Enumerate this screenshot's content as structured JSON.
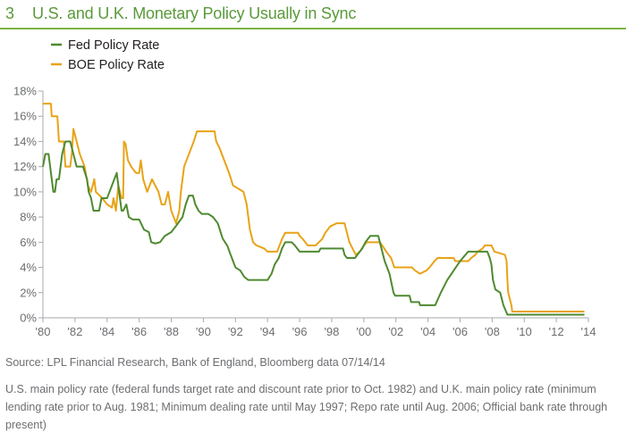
{
  "header": {
    "figure_number": "3",
    "title": "U.S. and U.K. Monetary Policy Usually in Sync"
  },
  "footer": {
    "source": "Source: LPL Financial Research, Bank of England, Bloomberg data   07/14/14",
    "note": "U.S. main policy rate (federal funds target rate and discount rate prior to Oct. 1982) and U.K. main policy rate (minimum lending rate prior to Aug. 1981; Minimum dealing rate until May 1997; Repo rate until Aug. 2006; Official bank rate through present)"
  },
  "colors": {
    "accent": "#7cb342",
    "fed": "#4e8a30",
    "boe": "#e8a317",
    "text": "#6d6e71"
  },
  "chart_data": {
    "type": "line",
    "title": "U.S. and U.K. Monetary Policy Usually in Sync",
    "xlabel": "",
    "ylabel": "",
    "xlim": [
      1980,
      2014
    ],
    "ylim": [
      0,
      18
    ],
    "grid": false,
    "legend_position": "top-left",
    "x_ticks": [
      1980,
      1982,
      1984,
      1986,
      1988,
      1990,
      1992,
      1994,
      1996,
      1998,
      2000,
      2002,
      2004,
      2006,
      2008,
      2010,
      2012,
      2014
    ],
    "x_tick_labels": [
      "'80",
      "'82",
      "'84",
      "'86",
      "'88",
      "'90",
      "'92",
      "'94",
      "'96",
      "'98",
      "'00",
      "'02",
      "'04",
      "'06",
      "'08",
      "'10",
      "'12",
      "'14"
    ],
    "y_ticks": [
      0,
      2,
      4,
      6,
      8,
      10,
      12,
      14,
      16,
      18
    ],
    "y_tick_labels": [
      "0%",
      "2%",
      "4%",
      "6%",
      "8%",
      "10%",
      "12%",
      "14%",
      "16%",
      "18%"
    ],
    "series": [
      {
        "name": "Fed Policy Rate",
        "color": "#4e8a30",
        "points": [
          [
            1980.0,
            12.0
          ],
          [
            1980.15,
            13.0
          ],
          [
            1980.35,
            13.0
          ],
          [
            1980.55,
            11.0
          ],
          [
            1980.65,
            10.0
          ],
          [
            1980.75,
            10.0
          ],
          [
            1980.85,
            11.0
          ],
          [
            1981.0,
            11.0
          ],
          [
            1981.2,
            13.0
          ],
          [
            1981.4,
            14.0
          ],
          [
            1981.7,
            14.0
          ],
          [
            1981.9,
            13.0
          ],
          [
            1982.1,
            12.0
          ],
          [
            1982.5,
            12.0
          ],
          [
            1982.75,
            11.0
          ],
          [
            1982.85,
            10.0
          ],
          [
            1983.0,
            9.5
          ],
          [
            1983.15,
            8.5
          ],
          [
            1983.5,
            8.5
          ],
          [
            1983.65,
            9.5
          ],
          [
            1984.0,
            9.5
          ],
          [
            1984.3,
            10.5
          ],
          [
            1984.6,
            11.5
          ],
          [
            1984.8,
            9.5
          ],
          [
            1984.9,
            8.5
          ],
          [
            1985.0,
            8.5
          ],
          [
            1985.2,
            9.0
          ],
          [
            1985.35,
            8.0
          ],
          [
            1985.6,
            7.8
          ],
          [
            1986.0,
            7.8
          ],
          [
            1986.3,
            7.0
          ],
          [
            1986.6,
            6.8
          ],
          [
            1986.75,
            6.0
          ],
          [
            1987.0,
            5.9
          ],
          [
            1987.3,
            6.0
          ],
          [
            1987.6,
            6.5
          ],
          [
            1988.0,
            6.8
          ],
          [
            1988.3,
            7.3
          ],
          [
            1988.7,
            8.0
          ],
          [
            1988.9,
            9.0
          ],
          [
            1989.1,
            9.7
          ],
          [
            1989.35,
            9.7
          ],
          [
            1989.5,
            9.0
          ],
          [
            1989.7,
            8.5
          ],
          [
            1989.9,
            8.25
          ],
          [
            1990.3,
            8.25
          ],
          [
            1990.6,
            8.0
          ],
          [
            1990.9,
            7.5
          ],
          [
            1991.2,
            6.3
          ],
          [
            1991.5,
            5.7
          ],
          [
            1991.7,
            5.0
          ],
          [
            1991.85,
            4.5
          ],
          [
            1992.0,
            4.0
          ],
          [
            1992.3,
            3.75
          ],
          [
            1992.55,
            3.25
          ],
          [
            1992.8,
            3.0
          ],
          [
            1994.0,
            3.0
          ],
          [
            1994.25,
            3.5
          ],
          [
            1994.45,
            4.25
          ],
          [
            1994.7,
            4.75
          ],
          [
            1994.9,
            5.5
          ],
          [
            1995.1,
            6.0
          ],
          [
            1995.5,
            6.0
          ],
          [
            1995.7,
            5.75
          ],
          [
            1996.0,
            5.25
          ],
          [
            1997.2,
            5.25
          ],
          [
            1997.3,
            5.5
          ],
          [
            1998.7,
            5.5
          ],
          [
            1998.8,
            5.0
          ],
          [
            1998.95,
            4.75
          ],
          [
            1999.45,
            4.75
          ],
          [
            1999.6,
            5.0
          ],
          [
            1999.9,
            5.5
          ],
          [
            2000.1,
            6.0
          ],
          [
            2000.4,
            6.5
          ],
          [
            2000.9,
            6.5
          ],
          [
            2001.1,
            5.5
          ],
          [
            2001.3,
            4.5
          ],
          [
            2001.6,
            3.5
          ],
          [
            2001.85,
            2.0
          ],
          [
            2001.95,
            1.75
          ],
          [
            2002.85,
            1.75
          ],
          [
            2002.95,
            1.25
          ],
          [
            2003.45,
            1.25
          ],
          [
            2003.5,
            1.0
          ],
          [
            2004.45,
            1.0
          ],
          [
            2004.8,
            2.0
          ],
          [
            2005.2,
            3.0
          ],
          [
            2005.6,
            3.75
          ],
          [
            2006.0,
            4.5
          ],
          [
            2006.5,
            5.25
          ],
          [
            2007.7,
            5.25
          ],
          [
            2007.85,
            4.75
          ],
          [
            2007.95,
            4.25
          ],
          [
            2008.05,
            3.0
          ],
          [
            2008.2,
            2.25
          ],
          [
            2008.5,
            2.0
          ],
          [
            2008.7,
            1.0
          ],
          [
            2008.95,
            0.25
          ],
          [
            2013.75,
            0.25
          ]
        ]
      },
      {
        "name": "BOE Policy Rate",
        "color": "#e8a317",
        "points": [
          [
            1980.0,
            17.0
          ],
          [
            1980.5,
            17.0
          ],
          [
            1980.55,
            16.0
          ],
          [
            1980.9,
            16.0
          ],
          [
            1981.0,
            14.0
          ],
          [
            1981.3,
            14.0
          ],
          [
            1981.4,
            12.0
          ],
          [
            1981.7,
            12.0
          ],
          [
            1981.8,
            13.0
          ],
          [
            1981.9,
            15.0
          ],
          [
            1982.0,
            14.5
          ],
          [
            1982.3,
            13.0
          ],
          [
            1982.6,
            12.0
          ],
          [
            1982.8,
            10.5
          ],
          [
            1983.0,
            10.0
          ],
          [
            1983.2,
            11.0
          ],
          [
            1983.3,
            10.0
          ],
          [
            1983.7,
            9.5
          ],
          [
            1984.0,
            9.0
          ],
          [
            1984.3,
            8.75
          ],
          [
            1984.4,
            9.5
          ],
          [
            1984.55,
            8.5
          ],
          [
            1984.7,
            10.5
          ],
          [
            1984.9,
            9.5
          ],
          [
            1985.0,
            9.5
          ],
          [
            1985.05,
            14.0
          ],
          [
            1985.15,
            13.8
          ],
          [
            1985.3,
            12.5
          ],
          [
            1985.5,
            12.0
          ],
          [
            1985.8,
            11.5
          ],
          [
            1986.0,
            11.5
          ],
          [
            1986.1,
            12.5
          ],
          [
            1986.25,
            11.0
          ],
          [
            1986.5,
            10.0
          ],
          [
            1986.8,
            11.0
          ],
          [
            1987.2,
            10.0
          ],
          [
            1987.4,
            9.0
          ],
          [
            1987.6,
            9.0
          ],
          [
            1987.8,
            10.0
          ],
          [
            1988.0,
            8.5
          ],
          [
            1988.3,
            7.5
          ],
          [
            1988.5,
            8.5
          ],
          [
            1988.6,
            10.0
          ],
          [
            1988.8,
            12.0
          ],
          [
            1989.1,
            13.0
          ],
          [
            1989.4,
            14.0
          ],
          [
            1989.6,
            14.8
          ],
          [
            1990.7,
            14.8
          ],
          [
            1990.8,
            14.0
          ],
          [
            1991.0,
            13.5
          ],
          [
            1991.3,
            12.5
          ],
          [
            1991.6,
            11.5
          ],
          [
            1991.85,
            10.5
          ],
          [
            1992.5,
            10.0
          ],
          [
            1992.7,
            9.0
          ],
          [
            1992.8,
            8.0
          ],
          [
            1992.9,
            7.0
          ],
          [
            1993.1,
            6.0
          ],
          [
            1993.3,
            5.75
          ],
          [
            1993.8,
            5.5
          ],
          [
            1994.0,
            5.25
          ],
          [
            1994.6,
            5.25
          ],
          [
            1994.75,
            5.75
          ],
          [
            1994.9,
            6.25
          ],
          [
            1995.1,
            6.75
          ],
          [
            1995.9,
            6.75
          ],
          [
            1996.0,
            6.5
          ],
          [
            1996.2,
            6.25
          ],
          [
            1996.5,
            5.75
          ],
          [
            1997.0,
            5.75
          ],
          [
            1997.4,
            6.25
          ],
          [
            1997.6,
            6.75
          ],
          [
            1997.9,
            7.25
          ],
          [
            1998.3,
            7.5
          ],
          [
            1998.8,
            7.5
          ],
          [
            1998.95,
            6.75
          ],
          [
            1999.1,
            6.0
          ],
          [
            1999.3,
            5.5
          ],
          [
            1999.5,
            5.0
          ],
          [
            1999.75,
            5.25
          ],
          [
            2000.0,
            5.75
          ],
          [
            2000.2,
            6.0
          ],
          [
            2001.0,
            6.0
          ],
          [
            2001.15,
            5.75
          ],
          [
            2001.4,
            5.25
          ],
          [
            2001.7,
            4.75
          ],
          [
            2001.9,
            4.0
          ],
          [
            2003.0,
            4.0
          ],
          [
            2003.2,
            3.75
          ],
          [
            2003.5,
            3.5
          ],
          [
            2003.9,
            3.75
          ],
          [
            2004.1,
            4.0
          ],
          [
            2004.4,
            4.5
          ],
          [
            2004.6,
            4.75
          ],
          [
            2005.6,
            4.75
          ],
          [
            2005.7,
            4.5
          ],
          [
            2006.5,
            4.5
          ],
          [
            2006.7,
            4.75
          ],
          [
            2006.95,
            5.0
          ],
          [
            2007.1,
            5.25
          ],
          [
            2007.4,
            5.5
          ],
          [
            2007.55,
            5.75
          ],
          [
            2007.95,
            5.75
          ],
          [
            2008.05,
            5.5
          ],
          [
            2008.15,
            5.25
          ],
          [
            2008.8,
            5.0
          ],
          [
            2008.9,
            4.5
          ],
          [
            2008.95,
            3.0
          ],
          [
            2009.0,
            2.0
          ],
          [
            2009.1,
            1.5
          ],
          [
            2009.2,
            1.0
          ],
          [
            2009.25,
            0.5
          ],
          [
            2013.75,
            0.5
          ]
        ]
      }
    ]
  }
}
